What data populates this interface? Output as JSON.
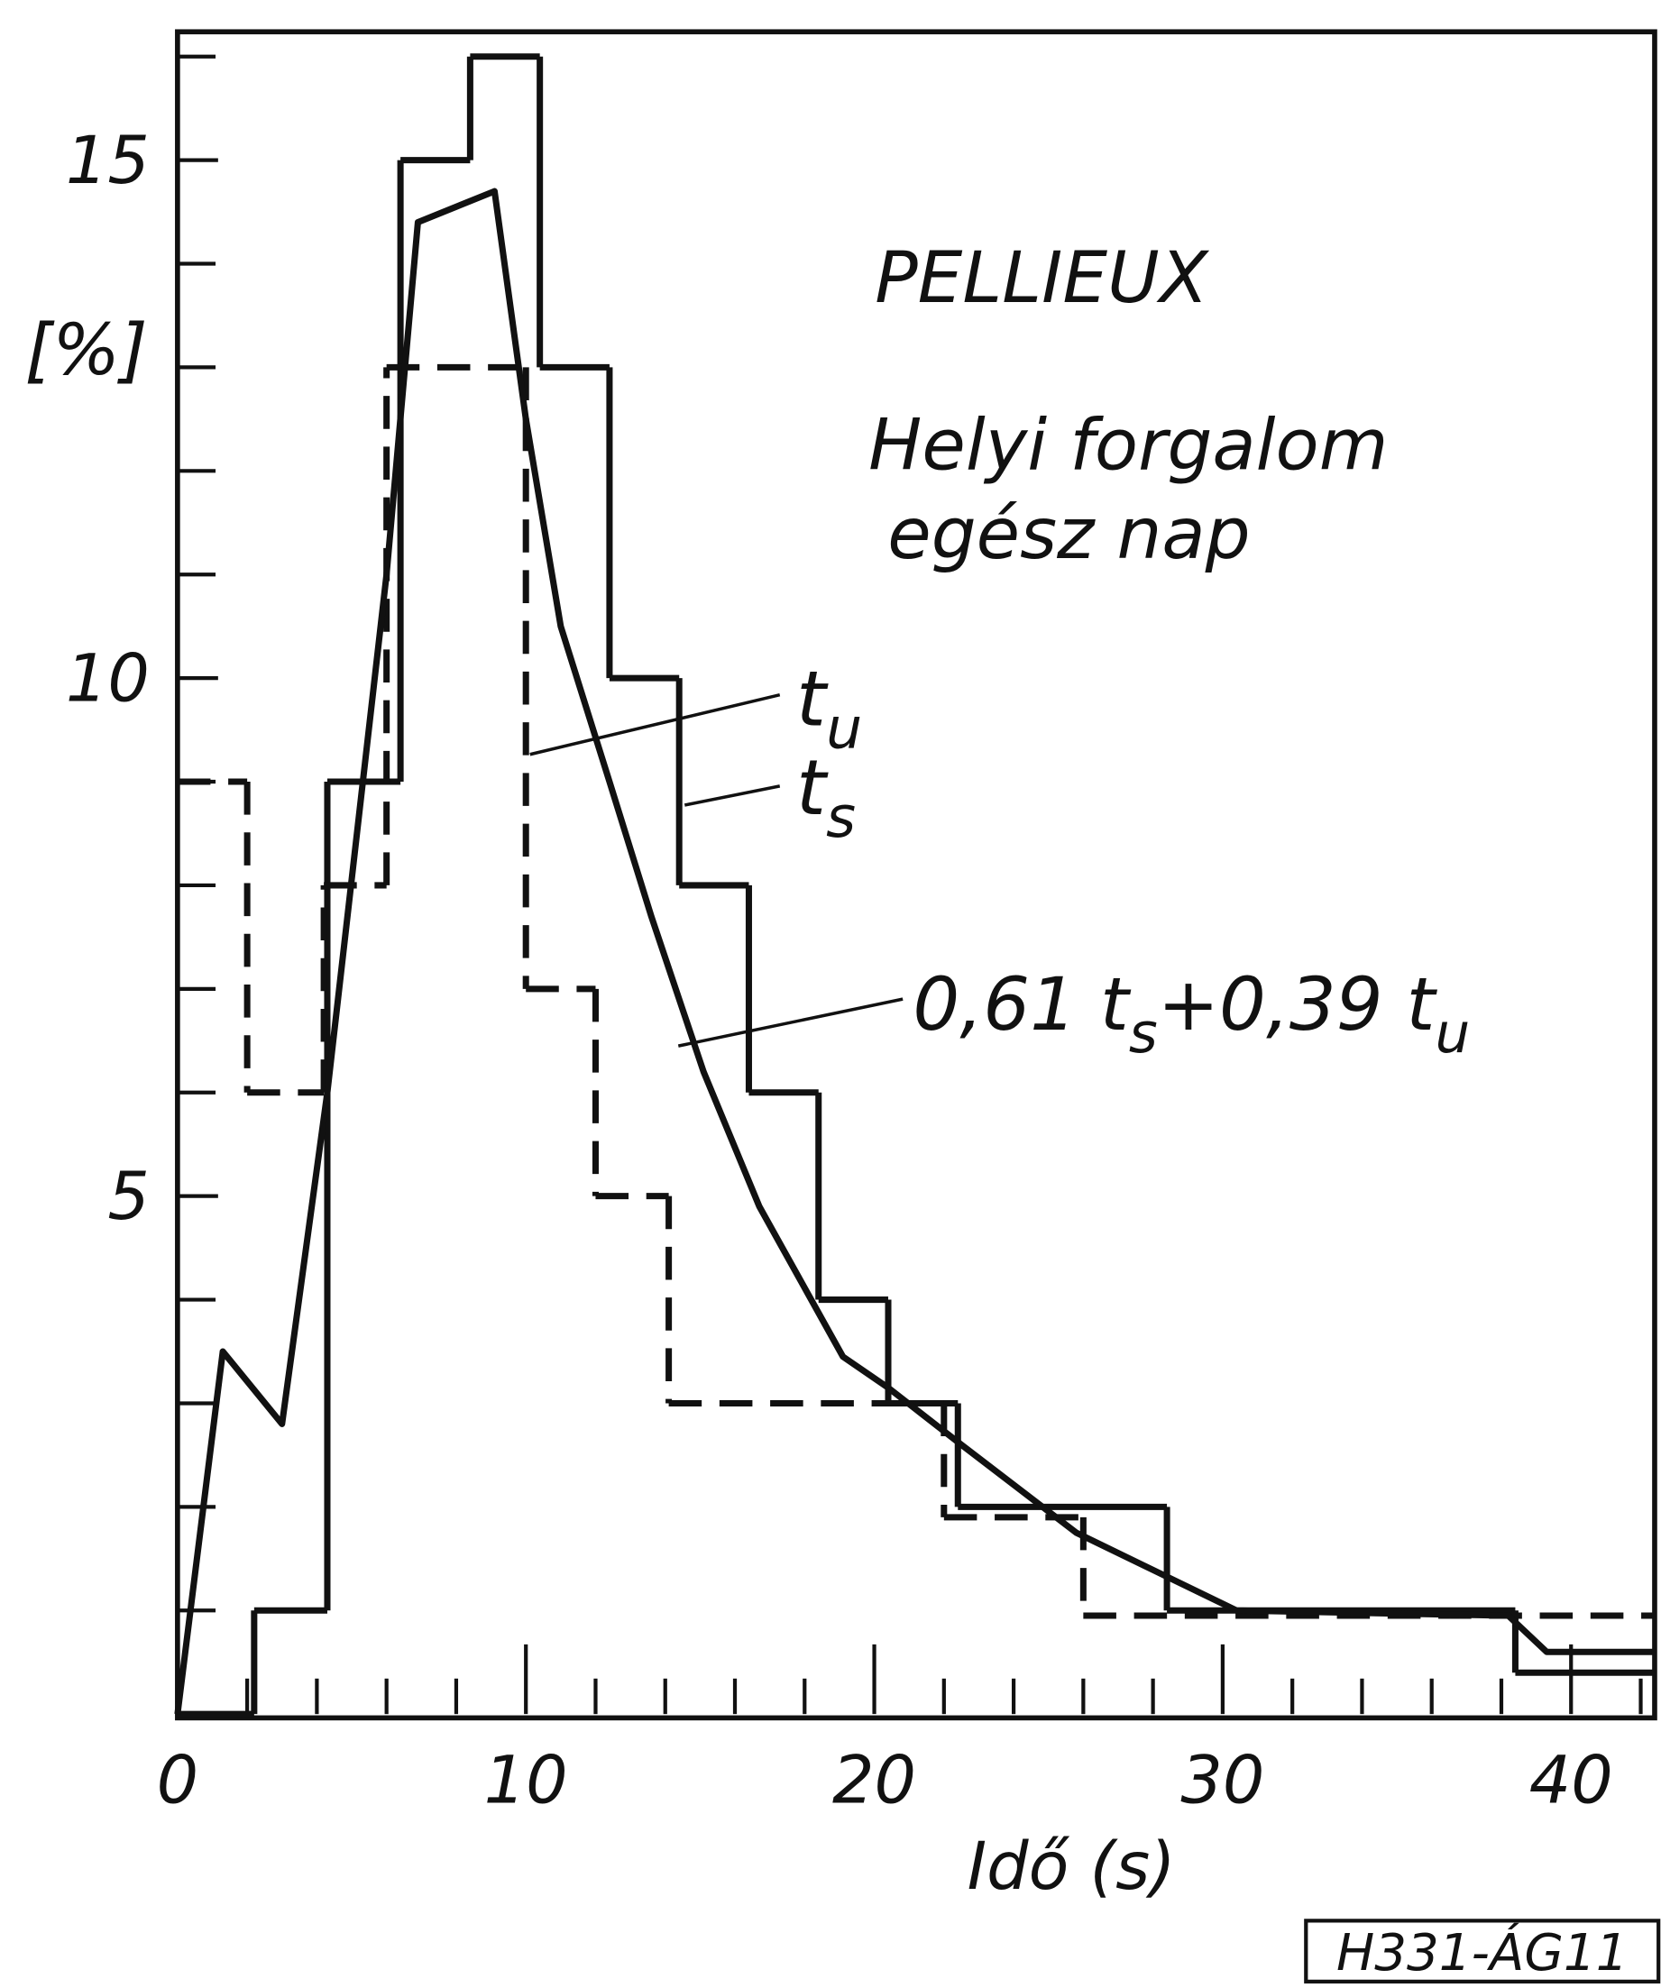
{
  "chart_data": {
    "type": "step",
    "title": "PELLIEUX",
    "subtitle": [
      "Helyi forgalom",
      "egész nap"
    ],
    "x_label": "Idő (s)",
    "y_label": "[%]",
    "code": "H331-ÁG11",
    "xlim": [
      0,
      42.4
    ],
    "ylim": [
      0,
      16.3
    ],
    "xticks": [
      0,
      10,
      20,
      30,
      40
    ],
    "yticks": [
      5,
      10,
      15
    ],
    "x_minor_ticks": [
      2,
      4,
      6,
      8,
      12,
      14,
      16,
      18,
      22,
      24,
      26,
      28,
      32,
      34,
      36,
      38,
      42
    ],
    "y_minor_ticks": [
      1,
      2,
      3,
      4,
      6,
      7,
      8,
      9,
      11,
      12,
      13,
      14,
      16
    ],
    "color": "#111111",
    "series": [
      {
        "kind": "step",
        "dashed": false,
        "bins": [
          0,
          2.2,
          4.3,
          6.4,
          8.4,
          10.4,
          12.4,
          14.4,
          16.4,
          18.4,
          20.4,
          22.4,
          28.4,
          38.4,
          42.4
        ],
        "values": [
          0,
          1,
          9,
          15,
          16,
          13,
          10,
          8,
          6,
          4,
          3,
          2,
          1,
          0.4
        ]
      },
      {
        "kind": "step",
        "dashed": true,
        "bins": [
          0,
          2,
          4.2,
          6,
          10,
          12,
          14.1,
          22,
          26,
          42.4
        ],
        "values": [
          9,
          6,
          8,
          13,
          7,
          5,
          3,
          1.9,
          0.95
        ]
      },
      {
        "kind": "line",
        "dashed": false,
        "x": [
          0,
          1.3,
          3.0,
          4.3,
          6.0,
          6.9,
          9.1,
          10.0,
          11.0,
          12.4,
          13.6,
          15.1,
          16.7,
          19.1,
          20.4,
          22.5,
          25.8,
          30.4,
          38.2,
          39.3,
          42.4
        ],
        "values": [
          0,
          3.5,
          2.8,
          6.0,
          11.0,
          14.4,
          14.7,
          12.5,
          10.5,
          9.0,
          7.7,
          6.2,
          4.9,
          3.45,
          3.15,
          2.6,
          1.75,
          1.0,
          0.95,
          0.6,
          0.6
        ]
      }
    ],
    "annotations": [
      {
        "parts": [
          {
            "text": "t"
          },
          {
            "text": "u",
            "sub": true
          }
        ]
      },
      {
        "parts": [
          {
            "text": "t"
          },
          {
            "text": "s",
            "sub": true
          }
        ]
      },
      {
        "parts": [
          {
            "text": "0,61 t"
          },
          {
            "text": "s",
            "sub": true
          },
          {
            "text": "+0,39 t"
          },
          {
            "text": "u",
            "sub": true
          }
        ]
      }
    ]
  }
}
